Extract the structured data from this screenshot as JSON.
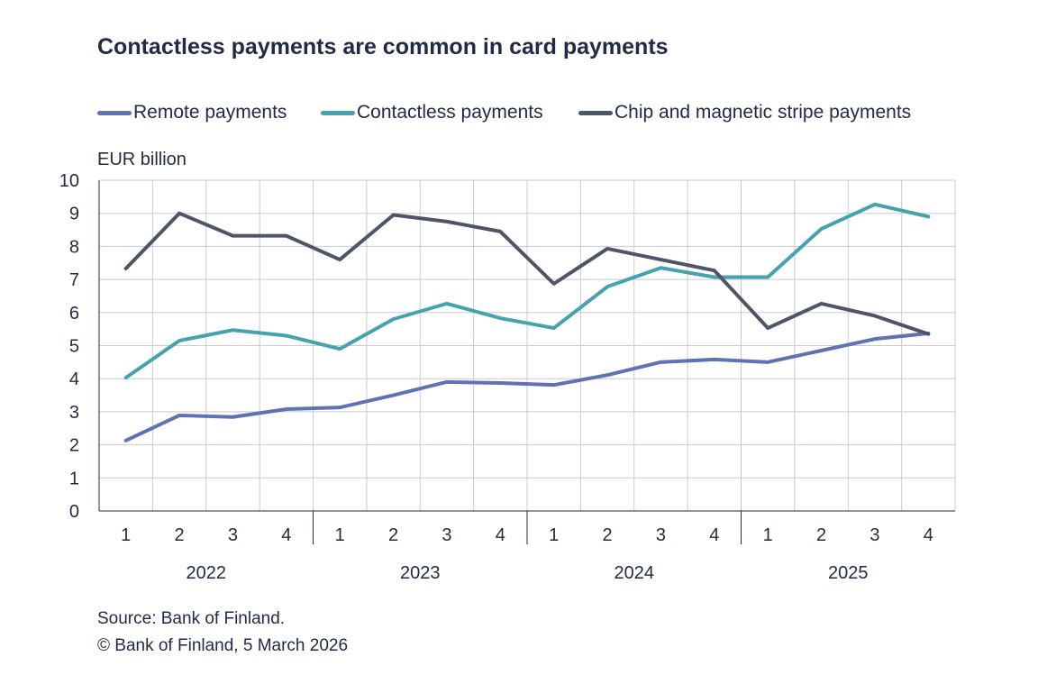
{
  "chart_data": {
    "type": "line",
    "title": "Contactless payments are common in card payments",
    "ylabel": "EUR billion",
    "ylim": [
      0,
      10
    ],
    "yticks": [
      0,
      1,
      2,
      3,
      4,
      5,
      6,
      7,
      8,
      9,
      10
    ],
    "grid": true,
    "legend_placement": "top",
    "categories": [
      "1",
      "2",
      "3",
      "4",
      "1",
      "2",
      "3",
      "4",
      "1",
      "2",
      "3",
      "4",
      "1",
      "2",
      "3",
      "4"
    ],
    "years": [
      "2022",
      "2023",
      "2024",
      "2025"
    ],
    "series": [
      {
        "name": "Remote payments",
        "color": "#5f72b3",
        "values": [
          2.13,
          2.89,
          2.84,
          3.08,
          3.13,
          3.5,
          3.9,
          3.87,
          3.81,
          4.11,
          4.5,
          4.58,
          4.5,
          4.85,
          5.2,
          5.37
        ]
      },
      {
        "name": "Contactless payments",
        "color": "#46a3ad",
        "values": [
          4.03,
          5.15,
          5.47,
          5.3,
          4.9,
          5.8,
          6.27,
          5.83,
          5.53,
          6.78,
          7.35,
          7.07,
          7.07,
          8.53,
          9.27,
          8.9
        ]
      },
      {
        "name": "Chip and magnetic stripe payments",
        "color": "#4d5566",
        "values": [
          7.33,
          9.0,
          8.32,
          8.32,
          7.6,
          8.95,
          8.75,
          8.45,
          6.87,
          7.93,
          7.6,
          7.27,
          5.53,
          6.27,
          5.9,
          5.35
        ]
      }
    ]
  },
  "source": "Source: Bank of Finland.",
  "copyright": "© Bank of Finland, 5 March 2026"
}
